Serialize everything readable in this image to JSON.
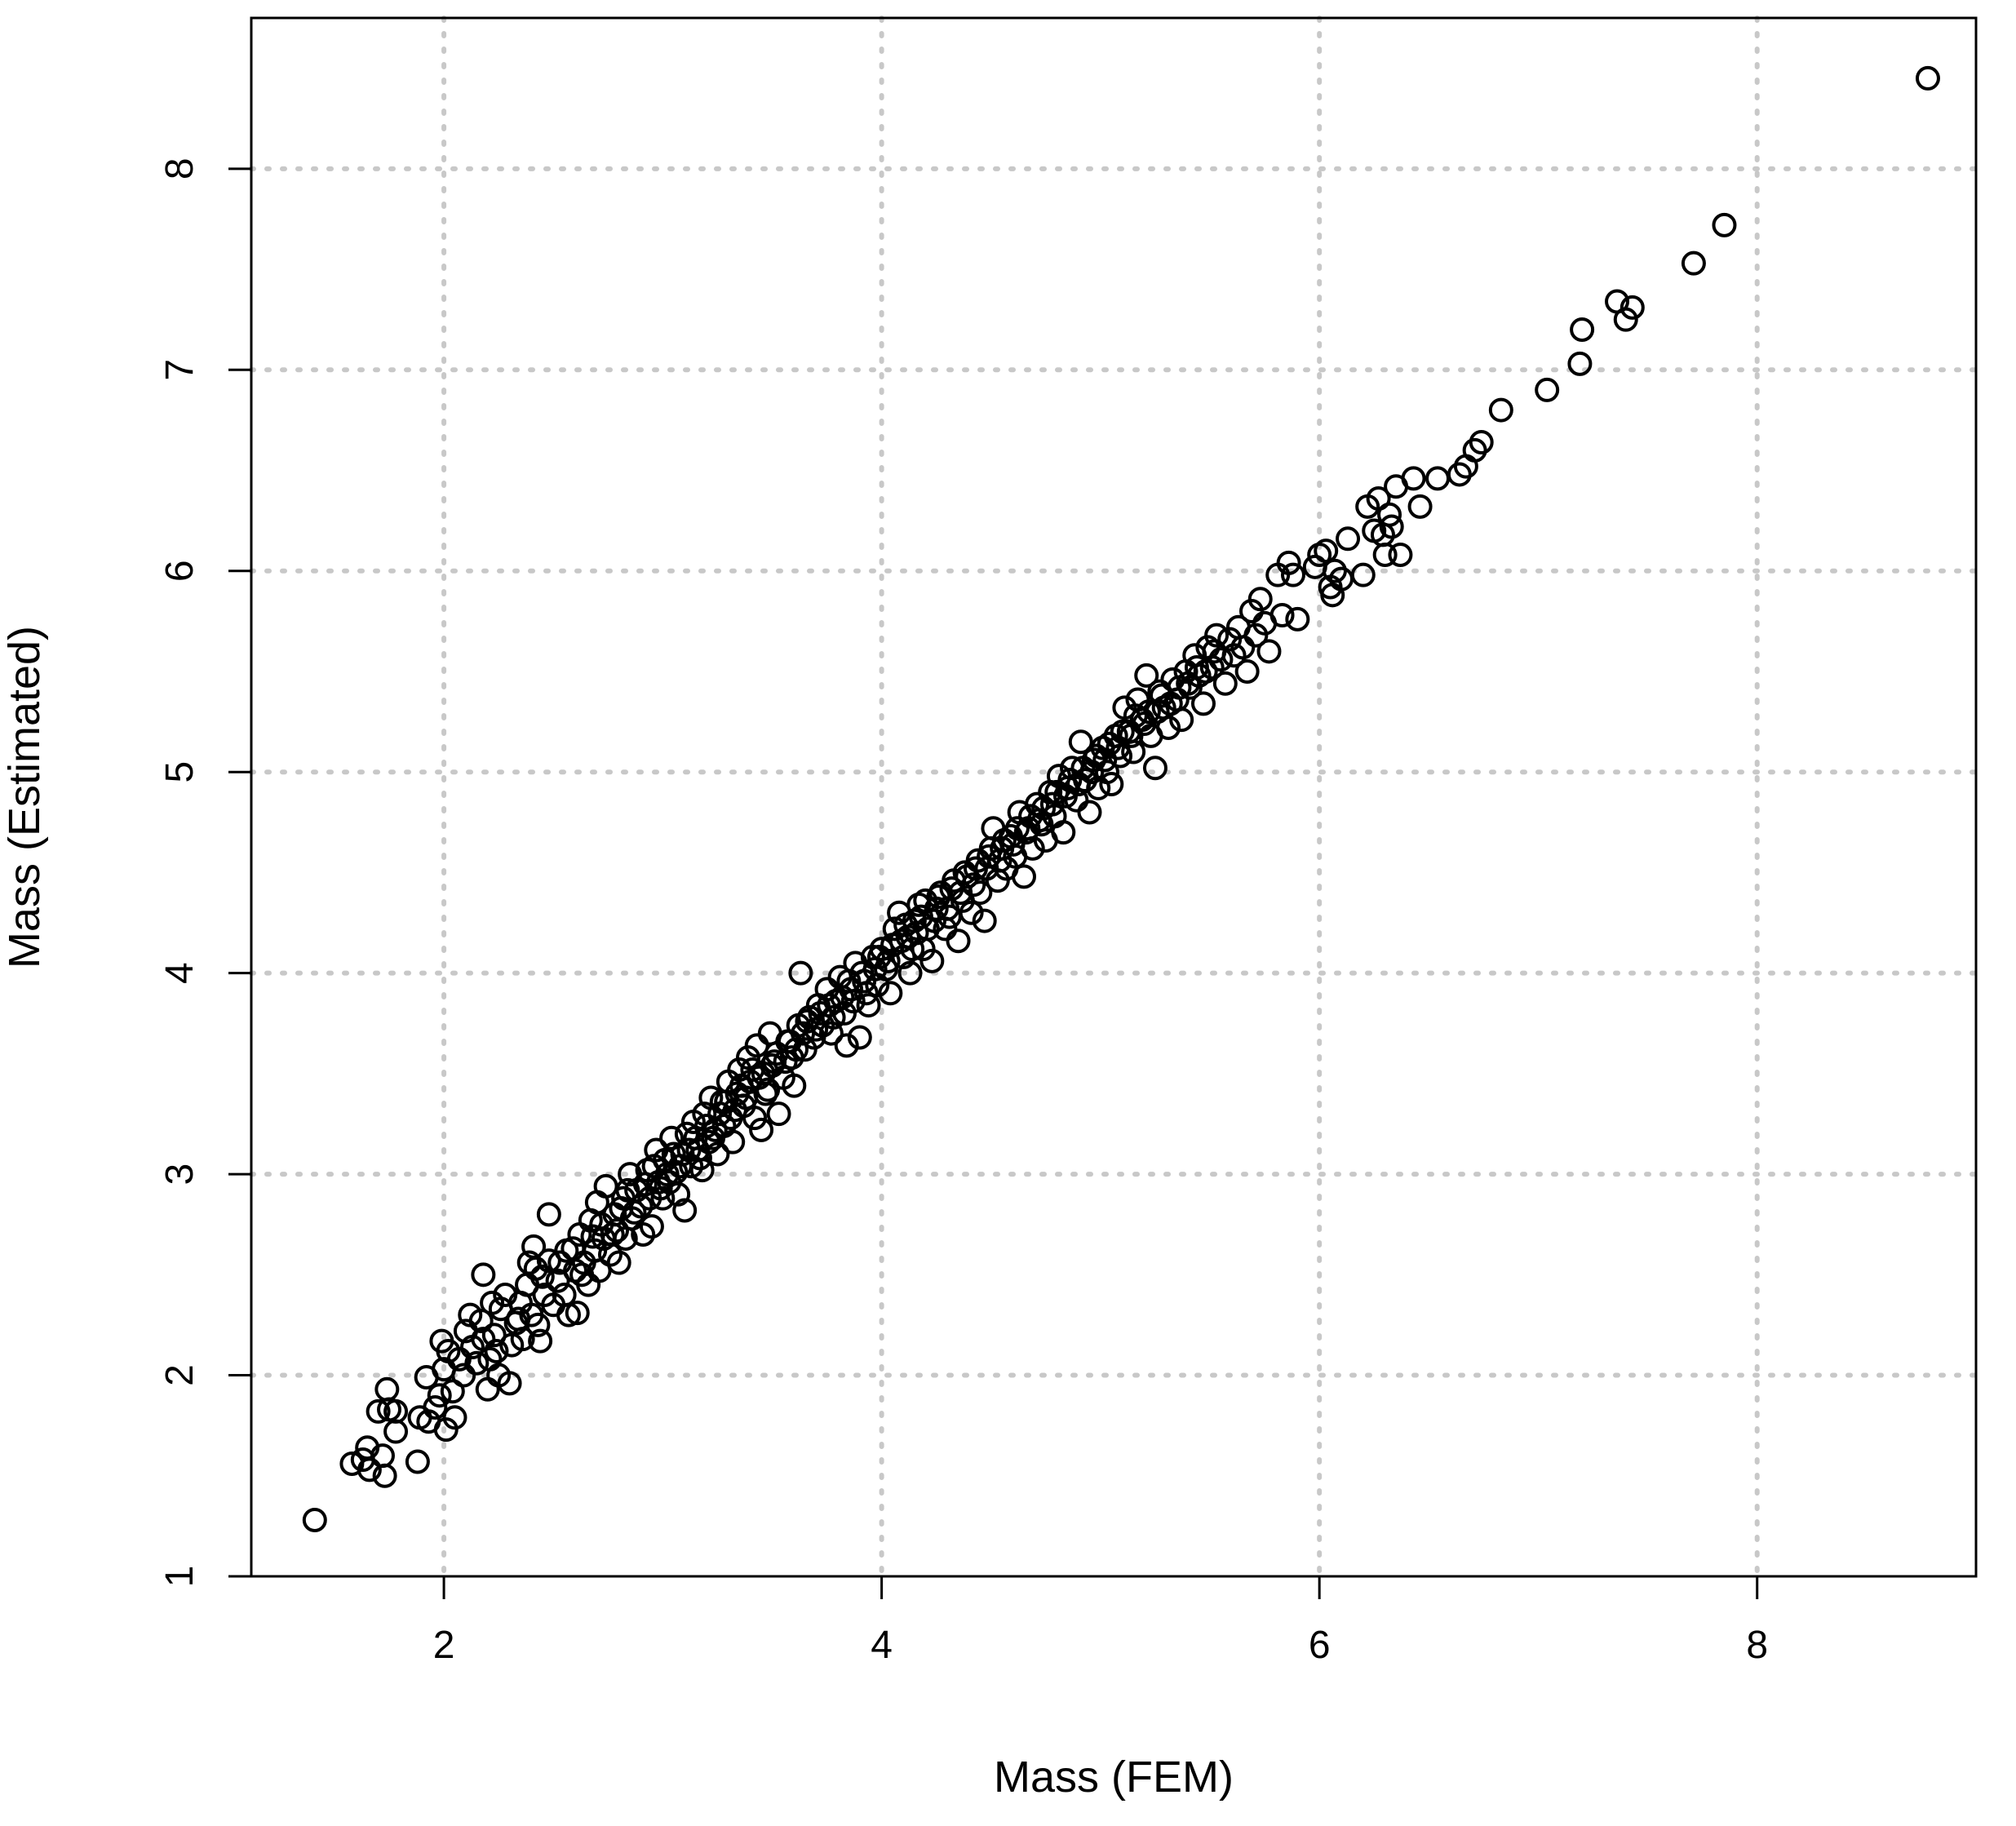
{
  "chart_data": {
    "type": "scatter",
    "title": "",
    "xlabel": "Mass (FEM)",
    "ylabel": "Mass (Estimated)",
    "xlim": [
      1.12,
      9.0
    ],
    "ylim": [
      1.0,
      8.75
    ],
    "x_ticks": [
      "2",
      "4",
      "6",
      "8"
    ],
    "y_ticks": [
      "1",
      "2",
      "3",
      "4",
      "5",
      "6",
      "7",
      "8"
    ],
    "grid": true,
    "marker": "open-circle",
    "colors": {
      "points": "#000000",
      "grid": "#c8c8c8",
      "frame": "#000000"
    },
    "points": [
      [
        1.41,
        1.28
      ],
      [
        1.58,
        1.56
      ],
      [
        1.63,
        1.58
      ],
      [
        1.66,
        1.53
      ],
      [
        1.65,
        1.64
      ],
      [
        1.72,
        1.6
      ],
      [
        1.73,
        1.5
      ],
      [
        1.7,
        1.82
      ],
      [
        1.74,
        1.93
      ],
      [
        1.75,
        1.83
      ],
      [
        1.78,
        1.82
      ],
      [
        1.78,
        1.72
      ],
      [
        1.88,
        1.57
      ],
      [
        1.89,
        1.79
      ],
      [
        1.93,
        1.77
      ],
      [
        1.92,
        1.99
      ],
      [
        1.96,
        1.84
      ],
      [
        1.98,
        1.9
      ],
      [
        2.0,
        2.03
      ],
      [
        2.01,
        1.73
      ],
      [
        2.04,
        1.92
      ],
      [
        2.05,
        1.79
      ],
      [
        1.99,
        2.17
      ],
      [
        2.02,
        2.12
      ],
      [
        2.07,
        2.08
      ],
      [
        2.09,
        2.0
      ],
      [
        2.1,
        2.22
      ],
      [
        2.12,
        2.3
      ],
      [
        2.13,
        2.14
      ],
      [
        2.15,
        2.06
      ],
      [
        2.17,
        2.27
      ],
      [
        2.18,
        2.18
      ],
      [
        2.18,
        2.5
      ],
      [
        2.2,
        1.93
      ],
      [
        2.21,
        2.08
      ],
      [
        2.22,
        2.36
      ],
      [
        2.23,
        2.2
      ],
      [
        2.24,
        2.12
      ],
      [
        2.25,
        2.0
      ],
      [
        2.28,
        2.4
      ],
      [
        2.3,
        1.96
      ],
      [
        2.31,
        2.15
      ],
      [
        2.33,
        2.26
      ],
      [
        2.35,
        2.36
      ],
      [
        2.36,
        2.18
      ],
      [
        2.38,
        2.45
      ],
      [
        2.4,
        2.3
      ],
      [
        2.41,
        2.64
      ],
      [
        2.42,
        2.53
      ],
      [
        2.43,
        2.25
      ],
      [
        2.44,
        2.17
      ],
      [
        2.46,
        2.4
      ],
      [
        2.48,
        2.8
      ],
      [
        2.48,
        2.57
      ],
      [
        2.5,
        2.35
      ],
      [
        2.52,
        2.47
      ],
      [
        2.55,
        2.4
      ],
      [
        2.56,
        2.62
      ],
      [
        2.57,
        2.3
      ],
      [
        2.6,
        2.52
      ],
      [
        2.61,
        2.31
      ],
      [
        2.62,
        2.7
      ],
      [
        2.64,
        2.56
      ],
      [
        2.66,
        2.45
      ],
      [
        2.67,
        2.77
      ],
      [
        2.69,
        2.62
      ],
      [
        2.7,
        2.86
      ],
      [
        2.71,
        2.52
      ],
      [
        2.73,
        2.68
      ],
      [
        2.74,
        2.94
      ],
      [
        2.76,
        2.6
      ],
      [
        2.78,
        2.8
      ],
      [
        2.79,
        2.72
      ],
      [
        2.8,
        2.56
      ],
      [
        2.82,
        2.88
      ],
      [
        2.83,
        2.68
      ],
      [
        2.85,
        3.0
      ],
      [
        2.86,
        2.78
      ],
      [
        2.88,
        2.92
      ],
      [
        2.9,
        2.84
      ],
      [
        2.91,
        2.7
      ],
      [
        2.93,
        3.02
      ],
      [
        2.94,
        2.88
      ],
      [
        2.95,
        2.74
      ],
      [
        2.97,
        3.12
      ],
      [
        2.98,
        2.96
      ],
      [
        3.0,
        2.88
      ],
      [
        3.01,
        3.07
      ],
      [
        3.03,
        2.96
      ],
      [
        3.04,
        3.18
      ],
      [
        3.06,
        3.01
      ],
      [
        3.07,
        2.9
      ],
      [
        3.09,
        3.1
      ],
      [
        3.1,
        2.82
      ],
      [
        3.11,
        3.2
      ],
      [
        3.13,
        3.04
      ],
      [
        3.14,
        3.26
      ],
      [
        3.16,
        3.12
      ],
      [
        3.18,
        3.02
      ],
      [
        3.19,
        3.3
      ],
      [
        3.21,
        3.16
      ],
      [
        3.22,
        3.38
      ],
      [
        3.24,
        3.22
      ],
      [
        3.25,
        3.1
      ],
      [
        3.27,
        3.36
      ],
      [
        3.28,
        3.24
      ],
      [
        3.3,
        3.46
      ],
      [
        3.31,
        3.28
      ],
      [
        3.32,
        3.16
      ],
      [
        3.34,
        3.4
      ],
      [
        3.35,
        3.52
      ],
      [
        3.37,
        3.34
      ],
      [
        3.39,
        3.58
      ],
      [
        3.4,
        3.46
      ],
      [
        3.42,
        3.28
      ],
      [
        3.43,
        3.64
      ],
      [
        3.45,
        3.22
      ],
      [
        3.46,
        3.5
      ],
      [
        3.48,
        3.42
      ],
      [
        3.49,
        3.7
      ],
      [
        3.51,
        3.56
      ],
      [
        3.53,
        3.3
      ],
      [
        3.55,
        3.48
      ],
      [
        3.57,
        3.66
      ],
      [
        3.59,
        3.58
      ],
      [
        3.6,
        3.44
      ],
      [
        3.62,
        3.74
      ],
      [
        3.63,
        4.0
      ],
      [
        3.65,
        3.62
      ],
      [
        3.67,
        3.78
      ],
      [
        3.69,
        3.68
      ],
      [
        3.71,
        3.84
      ],
      [
        3.73,
        3.74
      ],
      [
        3.75,
        3.92
      ],
      [
        3.77,
        3.7
      ],
      [
        3.79,
        3.86
      ],
      [
        3.81,
        3.98
      ],
      [
        3.83,
        3.8
      ],
      [
        3.84,
        3.64
      ],
      [
        3.86,
        3.92
      ],
      [
        3.88,
        4.05
      ],
      [
        3.9,
        3.68
      ],
      [
        3.92,
        3.96
      ],
      [
        3.94,
        3.84
      ],
      [
        3.96,
        4.08
      ],
      [
        3.98,
        3.94
      ],
      [
        4.0,
        4.12
      ],
      [
        4.02,
        4.02
      ],
      [
        4.04,
        3.9
      ],
      [
        4.06,
        4.22
      ],
      [
        4.08,
        4.3
      ],
      [
        4.1,
        4.08
      ],
      [
        4.12,
        4.18
      ],
      [
        4.13,
        4.0
      ],
      [
        4.15,
        4.26
      ],
      [
        4.17,
        4.34
      ],
      [
        4.19,
        4.12
      ],
      [
        4.21,
        4.22
      ],
      [
        4.23,
        4.06
      ],
      [
        4.25,
        4.32
      ],
      [
        4.27,
        4.4
      ],
      [
        4.29,
        4.22
      ],
      [
        4.31,
        4.28
      ],
      [
        4.33,
        4.46
      ],
      [
        4.35,
        4.16
      ],
      [
        4.37,
        4.36
      ],
      [
        4.39,
        4.48
      ],
      [
        4.41,
        4.3
      ],
      [
        4.43,
        4.52
      ],
      [
        4.45,
        4.4
      ],
      [
        4.47,
        4.26
      ],
      [
        4.49,
        4.58
      ],
      [
        4.51,
        4.72
      ],
      [
        4.53,
        4.46
      ],
      [
        4.55,
        4.62
      ],
      [
        4.57,
        4.52
      ],
      [
        4.59,
        4.68
      ],
      [
        4.61,
        4.58
      ],
      [
        4.63,
        4.8
      ],
      [
        4.65,
        4.48
      ],
      [
        4.67,
        4.72
      ],
      [
        4.69,
        4.62
      ],
      [
        4.71,
        4.84
      ],
      [
        4.73,
        4.74
      ],
      [
        4.75,
        4.66
      ],
      [
        4.77,
        4.9
      ],
      [
        4.79,
        4.78
      ],
      [
        4.81,
        4.98
      ],
      [
        4.83,
        4.7
      ],
      [
        4.85,
        4.92
      ],
      [
        4.87,
        5.02
      ],
      [
        4.89,
        4.86
      ],
      [
        4.91,
        5.15
      ],
      [
        4.93,
        4.96
      ],
      [
        4.95,
        4.8
      ],
      [
        4.97,
        5.06
      ],
      [
        4.99,
        4.92
      ],
      [
        5.01,
        5.12
      ],
      [
        5.03,
        5.0
      ],
      [
        5.05,
        4.94
      ],
      [
        5.07,
        5.18
      ],
      [
        5.09,
        5.08
      ],
      [
        5.11,
        5.32
      ],
      [
        5.13,
        5.2
      ],
      [
        5.15,
        5.1
      ],
      [
        5.17,
        5.36
      ],
      [
        5.19,
        5.26
      ],
      [
        5.21,
        5.48
      ],
      [
        5.23,
        5.18
      ],
      [
        5.25,
        5.02
      ],
      [
        5.27,
        5.4
      ],
      [
        5.29,
        5.32
      ],
      [
        5.31,
        5.22
      ],
      [
        5.33,
        5.46
      ],
      [
        5.35,
        5.36
      ],
      [
        5.37,
        5.26
      ],
      [
        5.39,
        5.5
      ],
      [
        5.41,
        5.42
      ],
      [
        5.43,
        5.58
      ],
      [
        5.45,
        5.48
      ],
      [
        5.47,
        5.34
      ],
      [
        5.49,
        5.62
      ],
      [
        5.51,
        5.52
      ],
      [
        5.53,
        5.68
      ],
      [
        5.55,
        5.56
      ],
      [
        5.57,
        5.44
      ],
      [
        5.59,
        5.66
      ],
      [
        5.61,
        5.58
      ],
      [
        5.63,
        5.72
      ],
      [
        5.65,
        5.62
      ],
      [
        5.67,
        5.5
      ],
      [
        5.69,
        5.8
      ],
      [
        5.71,
        5.68
      ],
      [
        5.73,
        5.86
      ],
      [
        5.75,
        5.74
      ],
      [
        5.77,
        5.6
      ],
      [
        5.81,
        5.98
      ],
      [
        5.83,
        5.78
      ],
      [
        5.86,
        6.04
      ],
      [
        5.88,
        5.98
      ],
      [
        5.9,
        5.76
      ],
      [
        5.98,
        6.02
      ],
      [
        6.0,
        6.08
      ],
      [
        6.03,
        6.1
      ],
      [
        6.05,
        5.92
      ],
      [
        6.06,
        5.88
      ],
      [
        6.07,
        6.0
      ],
      [
        6.1,
        5.96
      ],
      [
        6.13,
        6.16
      ],
      [
        6.2,
        5.98
      ],
      [
        6.22,
        6.32
      ],
      [
        6.25,
        6.2
      ],
      [
        6.27,
        6.36
      ],
      [
        6.29,
        6.18
      ],
      [
        6.3,
        6.08
      ],
      [
        6.32,
        6.28
      ],
      [
        6.33,
        6.22
      ],
      [
        6.35,
        6.42
      ],
      [
        6.37,
        6.08
      ],
      [
        6.43,
        6.46
      ],
      [
        6.46,
        6.32
      ],
      [
        6.54,
        6.46
      ],
      [
        6.64,
        6.48
      ],
      [
        6.67,
        6.52
      ],
      [
        6.71,
        6.6
      ],
      [
        6.74,
        6.64
      ],
      [
        6.83,
        6.8
      ],
      [
        7.04,
        6.9
      ],
      [
        7.19,
        7.03
      ],
      [
        7.2,
        7.2
      ],
      [
        7.36,
        7.34
      ],
      [
        7.4,
        7.25
      ],
      [
        7.43,
        7.31
      ],
      [
        7.71,
        7.53
      ],
      [
        7.85,
        7.72
      ],
      [
        8.78,
        8.45
      ],
      [
        2.26,
        2.33
      ],
      [
        2.34,
        2.28
      ],
      [
        2.39,
        2.56
      ],
      [
        2.45,
        2.49
      ],
      [
        2.53,
        2.56
      ],
      [
        2.59,
        2.63
      ],
      [
        2.63,
        2.5
      ],
      [
        2.68,
        2.69
      ],
      [
        2.72,
        2.75
      ],
      [
        2.77,
        2.7
      ],
      [
        2.81,
        2.83
      ],
      [
        2.84,
        2.92
      ],
      [
        2.87,
        2.81
      ],
      [
        2.92,
        2.95
      ],
      [
        2.96,
        3.04
      ],
      [
        2.99,
        2.93
      ],
      [
        3.02,
        3.0
      ],
      [
        3.05,
        3.1
      ],
      [
        3.08,
        3.04
      ],
      [
        3.12,
        3.12
      ],
      [
        3.15,
        3.18
      ],
      [
        3.17,
        3.08
      ],
      [
        3.2,
        3.24
      ],
      [
        3.23,
        3.18
      ],
      [
        3.26,
        3.3
      ],
      [
        3.29,
        3.36
      ],
      [
        3.33,
        3.32
      ],
      [
        3.36,
        3.44
      ],
      [
        3.38,
        3.38
      ],
      [
        3.41,
        3.52
      ],
      [
        3.44,
        3.48
      ],
      [
        3.47,
        3.4
      ],
      [
        3.5,
        3.54
      ],
      [
        3.52,
        3.6
      ],
      [
        3.56,
        3.56
      ],
      [
        3.58,
        3.66
      ],
      [
        3.61,
        3.62
      ],
      [
        3.64,
        3.7
      ],
      [
        3.66,
        3.76
      ],
      [
        3.7,
        3.72
      ],
      [
        3.72,
        3.8
      ],
      [
        3.76,
        3.84
      ],
      [
        3.78,
        3.78
      ],
      [
        3.82,
        3.88
      ],
      [
        3.85,
        3.96
      ],
      [
        3.87,
        3.86
      ],
      [
        3.91,
        4.0
      ],
      [
        3.93,
        3.9
      ],
      [
        3.97,
        4.02
      ],
      [
        3.99,
        4.08
      ],
      [
        4.03,
        4.06
      ],
      [
        4.05,
        4.14
      ],
      [
        4.09,
        4.16
      ],
      [
        4.11,
        4.24
      ],
      [
        4.14,
        4.12
      ],
      [
        4.16,
        4.2
      ],
      [
        4.18,
        4.28
      ],
      [
        4.2,
        4.36
      ],
      [
        4.24,
        4.26
      ],
      [
        4.26,
        4.38
      ],
      [
        4.3,
        4.32
      ],
      [
        4.32,
        4.42
      ],
      [
        4.36,
        4.4
      ],
      [
        4.38,
        4.5
      ],
      [
        4.42,
        4.44
      ],
      [
        4.44,
        4.56
      ],
      [
        4.48,
        4.52
      ],
      [
        4.5,
        4.62
      ],
      [
        4.54,
        4.56
      ],
      [
        4.56,
        4.66
      ],
      [
        4.6,
        4.64
      ],
      [
        4.62,
        4.72
      ],
      [
        4.66,
        4.7
      ],
      [
        4.68,
        4.78
      ],
      [
        4.72,
        4.76
      ],
      [
        4.74,
        4.82
      ],
      [
        4.78,
        4.84
      ],
      [
        4.8,
        4.9
      ],
      [
        4.84,
        4.88
      ],
      [
        4.86,
        4.96
      ],
      [
        4.9,
        4.94
      ],
      [
        4.92,
        5.02
      ],
      [
        4.96,
        5.0
      ],
      [
        4.98,
        5.08
      ],
      [
        5.02,
        5.06
      ],
      [
        5.04,
        5.14
      ],
      [
        5.08,
        5.12
      ],
      [
        5.1,
        5.2
      ],
      [
        5.14,
        5.18
      ],
      [
        5.16,
        5.28
      ],
      [
        5.2,
        5.24
      ],
      [
        5.22,
        5.3
      ],
      [
        5.26,
        5.3
      ],
      [
        5.28,
        5.38
      ],
      [
        5.32,
        5.34
      ],
      [
        5.36,
        5.42
      ],
      [
        5.4,
        5.44
      ],
      [
        5.44,
        5.52
      ],
      [
        5.48,
        5.5
      ],
      [
        5.52,
        5.6
      ]
    ]
  }
}
